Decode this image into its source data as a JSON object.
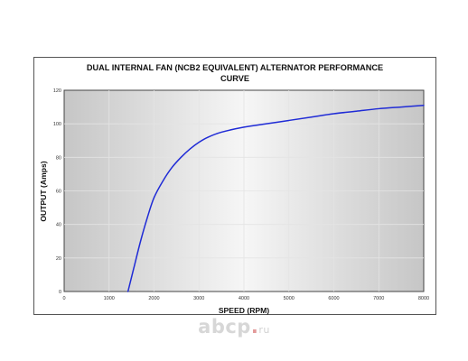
{
  "chart_data": {
    "type": "line",
    "title_lines": [
      "DUAL INTERNAL FAN (NCB2 EQUIVALENT) ALTERNATOR PERFORMANCE",
      "CURVE"
    ],
    "xlabel": "SPEED (RPM)",
    "ylabel": "OUTPUT (Amps)",
    "xlim": [
      0,
      8000
    ],
    "ylim": [
      0,
      120
    ],
    "x_ticks": [
      0,
      1000,
      2000,
      3000,
      4000,
      5000,
      6000,
      7000,
      8000
    ],
    "x_tick_labels": [
      "0",
      "1000",
      "2000",
      "3000",
      "4000",
      "5000",
      "6000",
      "7000",
      "8000"
    ],
    "y_ticks": [
      0,
      20,
      40,
      60,
      80,
      100,
      120
    ],
    "y_tick_labels": [
      "0",
      "20",
      "40",
      "60",
      "80",
      "100",
      "120"
    ],
    "grid": true,
    "series": [
      {
        "color": "#1f2bd6",
        "x": [
          1420,
          1550,
          1700,
          1850,
          2000,
          2200,
          2400,
          2600,
          2800,
          3000,
          3200,
          3500,
          4000,
          4500,
          5000,
          5500,
          6000,
          6500,
          7000,
          7500,
          8000
        ],
        "y": [
          0,
          14,
          30,
          44,
          56,
          66,
          74,
          80,
          85,
          89,
          92,
          95,
          98,
          100,
          102,
          104,
          106,
          107.5,
          109,
          110,
          111
        ]
      }
    ]
  },
  "watermark": {
    "brand": "abcp",
    "dot": ".",
    "tld": "ru"
  }
}
